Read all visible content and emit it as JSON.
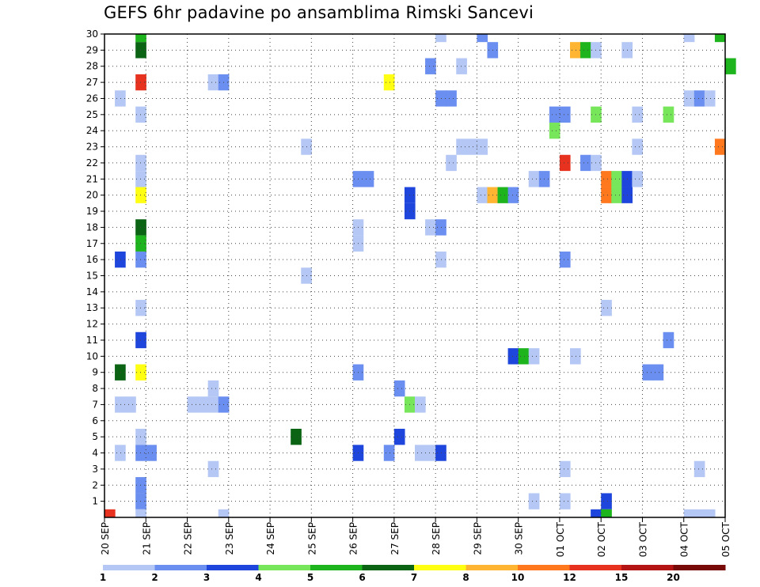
{
  "chart_data": {
    "type": "heatmap",
    "title": "GEFS 6hr padavine po ansamblima Rimski Sancevi",
    "xlabel": "",
    "ylabel": "",
    "x_step_hours": 6,
    "x_tick_labels": [
      "20 SEP",
      "21 SEP",
      "22 SEP",
      "23 SEP",
      "24 SEP",
      "25 SEP",
      "26 SEP",
      "27 SEP",
      "28 SEP",
      "29 SEP",
      "30 SEP",
      "01 OCT",
      "02 OCT",
      "03 OCT",
      "04 OCT",
      "05 OCT"
    ],
    "y_tick_labels": [
      "1",
      "2",
      "3",
      "4",
      "5",
      "6",
      "7",
      "8",
      "9",
      "10",
      "11",
      "12",
      "13",
      "14",
      "15",
      "16",
      "17",
      "18",
      "19",
      "20",
      "21",
      "22",
      "23",
      "24",
      "25",
      "26",
      "27",
      "28",
      "29",
      "30"
    ],
    "ylim": [
      0,
      30
    ],
    "grid": true,
    "colorbar": {
      "placement": "bottom",
      "labels": [
        "1",
        "2",
        "3",
        "4",
        "5",
        "6",
        "7",
        "8",
        "10",
        "12",
        "15",
        "20"
      ],
      "colors": [
        "#b5c8f5",
        "#6b8ff0",
        "#1e46dc",
        "#78e65a",
        "#1eb41e",
        "#0a6414",
        "#ffff14",
        "#ffb432",
        "#ff781e",
        "#e6321e",
        "#b41414",
        "#780a0a"
      ]
    },
    "cells": [
      {
        "member": 30,
        "x": "20 SEP 18Z",
        "class": 5
      },
      {
        "member": 30,
        "x": "28 SEP 00Z",
        "class": 1
      },
      {
        "member": 30,
        "x": "29 SEP 00Z",
        "class": 2
      },
      {
        "member": 30,
        "x": "04 OCT 00Z",
        "class": 1
      },
      {
        "member": 30,
        "x": "04 OCT 18Z",
        "class": 5
      },
      {
        "member": 29,
        "x": "20 SEP 18Z",
        "class": 6
      },
      {
        "member": 29,
        "x": "29 SEP 06Z",
        "class": 2
      },
      {
        "member": 29,
        "x": "01 OCT 06Z",
        "class": 8
      },
      {
        "member": 29,
        "x": "01 OCT 12Z",
        "class": 5
      },
      {
        "member": 29,
        "x": "01 OCT 18Z",
        "class": 1
      },
      {
        "member": 29,
        "x": "02 OCT 12Z",
        "class": 1
      },
      {
        "member": 28,
        "x": "27 SEP 18Z",
        "class": 2
      },
      {
        "member": 28,
        "x": "28 SEP 12Z",
        "class": 1
      },
      {
        "member": 28,
        "x": "05 OCT 00Z",
        "class": 5
      },
      {
        "member": 27,
        "x": "20 SEP 18Z",
        "class": 10
      },
      {
        "member": 27,
        "x": "22 SEP 12Z",
        "class": 1
      },
      {
        "member": 27,
        "x": "22 SEP 18Z",
        "class": 2
      },
      {
        "member": 27,
        "x": "26 SEP 18Z",
        "class": 7
      },
      {
        "member": 26,
        "x": "20 SEP 06Z",
        "class": 1
      },
      {
        "member": 26,
        "x": "28 SEP 00Z",
        "class": 2
      },
      {
        "member": 26,
        "x": "28 SEP 06Z",
        "class": 2
      },
      {
        "member": 26,
        "x": "04 OCT 00Z",
        "class": 1
      },
      {
        "member": 26,
        "x": "04 OCT 06Z",
        "class": 2
      },
      {
        "member": 26,
        "x": "04 OCT 12Z",
        "class": 1
      },
      {
        "member": 25,
        "x": "20 SEP 18Z",
        "class": 1
      },
      {
        "member": 25,
        "x": "30 SEP 18Z",
        "class": 2
      },
      {
        "member": 25,
        "x": "01 OCT 00Z",
        "class": 2
      },
      {
        "member": 25,
        "x": "01 OCT 18Z",
        "class": 4
      },
      {
        "member": 25,
        "x": "02 OCT 18Z",
        "class": 1
      },
      {
        "member": 25,
        "x": "03 OCT 12Z",
        "class": 4
      },
      {
        "member": 24,
        "x": "30 SEP 18Z",
        "class": 4
      },
      {
        "member": 23,
        "x": "24 SEP 18Z",
        "class": 1
      },
      {
        "member": 23,
        "x": "28 SEP 12Z",
        "class": 1
      },
      {
        "member": 23,
        "x": "28 SEP 18Z",
        "class": 1
      },
      {
        "member": 23,
        "x": "29 SEP 00Z",
        "class": 1
      },
      {
        "member": 23,
        "x": "02 OCT 18Z",
        "class": 1
      },
      {
        "member": 23,
        "x": "04 OCT 18Z",
        "class": 9
      },
      {
        "member": 22,
        "x": "20 SEP 18Z",
        "class": 1
      },
      {
        "member": 22,
        "x": "28 SEP 06Z",
        "class": 1
      },
      {
        "member": 22,
        "x": "01 OCT 00Z",
        "class": 10
      },
      {
        "member": 22,
        "x": "01 OCT 12Z",
        "class": 2
      },
      {
        "member": 22,
        "x": "01 OCT 18Z",
        "class": 1
      },
      {
        "member": 21,
        "x": "20 SEP 18Z",
        "class": 1
      },
      {
        "member": 21,
        "x": "26 SEP 00Z",
        "class": 2
      },
      {
        "member": 21,
        "x": "26 SEP 06Z",
        "class": 2
      },
      {
        "member": 21,
        "x": "30 SEP 06Z",
        "class": 1
      },
      {
        "member": 21,
        "x": "30 SEP 12Z",
        "class": 2
      },
      {
        "member": 21,
        "x": "02 OCT 00Z",
        "class": 9
      },
      {
        "member": 21,
        "x": "02 OCT 06Z",
        "class": 4
      },
      {
        "member": 21,
        "x": "02 OCT 12Z",
        "class": 3
      },
      {
        "member": 21,
        "x": "02 OCT 18Z",
        "class": 1
      },
      {
        "member": 20,
        "x": "20 SEP 18Z",
        "class": 7
      },
      {
        "member": 20,
        "x": "27 SEP 06Z",
        "class": 3
      },
      {
        "member": 20,
        "x": "29 SEP 00Z",
        "class": 1
      },
      {
        "member": 20,
        "x": "29 SEP 06Z",
        "class": 8
      },
      {
        "member": 20,
        "x": "29 SEP 12Z",
        "class": 5
      },
      {
        "member": 20,
        "x": "29 SEP 18Z",
        "class": 2
      },
      {
        "member": 20,
        "x": "02 OCT 00Z",
        "class": 9
      },
      {
        "member": 20,
        "x": "02 OCT 06Z",
        "class": 4
      },
      {
        "member": 20,
        "x": "02 OCT 12Z",
        "class": 3
      },
      {
        "member": 19,
        "x": "27 SEP 06Z",
        "class": 3
      },
      {
        "member": 18,
        "x": "20 SEP 18Z",
        "class": 6
      },
      {
        "member": 18,
        "x": "26 SEP 00Z",
        "class": 1
      },
      {
        "member": 18,
        "x": "27 SEP 18Z",
        "class": 1
      },
      {
        "member": 18,
        "x": "28 SEP 00Z",
        "class": 2
      },
      {
        "member": 17,
        "x": "20 SEP 18Z",
        "class": 5
      },
      {
        "member": 17,
        "x": "26 SEP 00Z",
        "class": 1
      },
      {
        "member": 16,
        "x": "20 SEP 06Z",
        "class": 3
      },
      {
        "member": 16,
        "x": "20 SEP 18Z",
        "class": 2
      },
      {
        "member": 16,
        "x": "28 SEP 00Z",
        "class": 1
      },
      {
        "member": 16,
        "x": "01 OCT 00Z",
        "class": 2
      },
      {
        "member": 15,
        "x": "24 SEP 18Z",
        "class": 1
      },
      {
        "member": 13,
        "x": "20 SEP 18Z",
        "class": 1
      },
      {
        "member": 13,
        "x": "02 OCT 00Z",
        "class": 1
      },
      {
        "member": 11,
        "x": "20 SEP 18Z",
        "class": 3
      },
      {
        "member": 11,
        "x": "03 OCT 12Z",
        "class": 2
      },
      {
        "member": 10,
        "x": "29 SEP 18Z",
        "class": 3
      },
      {
        "member": 10,
        "x": "30 SEP 00Z",
        "class": 5
      },
      {
        "member": 10,
        "x": "30 SEP 06Z",
        "class": 1
      },
      {
        "member": 10,
        "x": "01 OCT 06Z",
        "class": 1
      },
      {
        "member": 9,
        "x": "20 SEP 06Z",
        "class": 6
      },
      {
        "member": 9,
        "x": "20 SEP 18Z",
        "class": 7
      },
      {
        "member": 9,
        "x": "26 SEP 00Z",
        "class": 2
      },
      {
        "member": 9,
        "x": "03 OCT 00Z",
        "class": 2
      },
      {
        "member": 9,
        "x": "03 OCT 06Z",
        "class": 2
      },
      {
        "member": 8,
        "x": "22 SEP 12Z",
        "class": 1
      },
      {
        "member": 8,
        "x": "27 SEP 00Z",
        "class": 2
      },
      {
        "member": 7,
        "x": "20 SEP 06Z",
        "class": 1
      },
      {
        "member": 7,
        "x": "20 SEP 12Z",
        "class": 1
      },
      {
        "member": 7,
        "x": "22 SEP 00Z",
        "class": 1
      },
      {
        "member": 7,
        "x": "22 SEP 06Z",
        "class": 1
      },
      {
        "member": 7,
        "x": "22 SEP 12Z",
        "class": 1
      },
      {
        "member": 7,
        "x": "22 SEP 18Z",
        "class": 2
      },
      {
        "member": 7,
        "x": "27 SEP 06Z",
        "class": 4
      },
      {
        "member": 7,
        "x": "27 SEP 12Z",
        "class": 1
      },
      {
        "member": 5,
        "x": "20 SEP 18Z",
        "class": 1
      },
      {
        "member": 5,
        "x": "24 SEP 12Z",
        "class": 6
      },
      {
        "member": 5,
        "x": "27 SEP 00Z",
        "class": 3
      },
      {
        "member": 4,
        "x": "20 SEP 06Z",
        "class": 1
      },
      {
        "member": 4,
        "x": "20 SEP 18Z",
        "class": 2
      },
      {
        "member": 4,
        "x": "21 SEP 00Z",
        "class": 2
      },
      {
        "member": 4,
        "x": "26 SEP 00Z",
        "class": 3
      },
      {
        "member": 4,
        "x": "26 SEP 18Z",
        "class": 2
      },
      {
        "member": 4,
        "x": "27 SEP 12Z",
        "class": 1
      },
      {
        "member": 4,
        "x": "27 SEP 18Z",
        "class": 1
      },
      {
        "member": 4,
        "x": "28 SEP 00Z",
        "class": 3
      },
      {
        "member": 3,
        "x": "22 SEP 12Z",
        "class": 1
      },
      {
        "member": 3,
        "x": "01 OCT 00Z",
        "class": 1
      },
      {
        "member": 3,
        "x": "04 OCT 06Z",
        "class": 1
      },
      {
        "member": 2,
        "x": "20 SEP 18Z",
        "class": 2
      },
      {
        "member": 1,
        "x": "20 SEP 18Z",
        "class": 2
      },
      {
        "member": 1,
        "x": "30 SEP 06Z",
        "class": 1
      },
      {
        "member": 1,
        "x": "01 OCT 00Z",
        "class": 1
      },
      {
        "member": 1,
        "x": "02 OCT 00Z",
        "class": 3
      },
      {
        "member": 0,
        "x": "20 SEP 18Z",
        "class": 1
      },
      {
        "member": 0,
        "x": "22 SEP 18Z",
        "class": 1
      },
      {
        "member": 0,
        "x": "01 OCT 18Z",
        "class": 3
      },
      {
        "member": 0,
        "x": "02 OCT 00Z",
        "class": 5
      },
      {
        "member": 0,
        "x": "04 OCT 00Z",
        "class": 1
      },
      {
        "member": 0,
        "x": "04 OCT 06Z",
        "class": 1
      },
      {
        "member": 0,
        "x": "04 OCT 12Z",
        "class": 1
      },
      {
        "member": 0,
        "x": "20 SEP 00Z",
        "class": 10
      }
    ]
  }
}
